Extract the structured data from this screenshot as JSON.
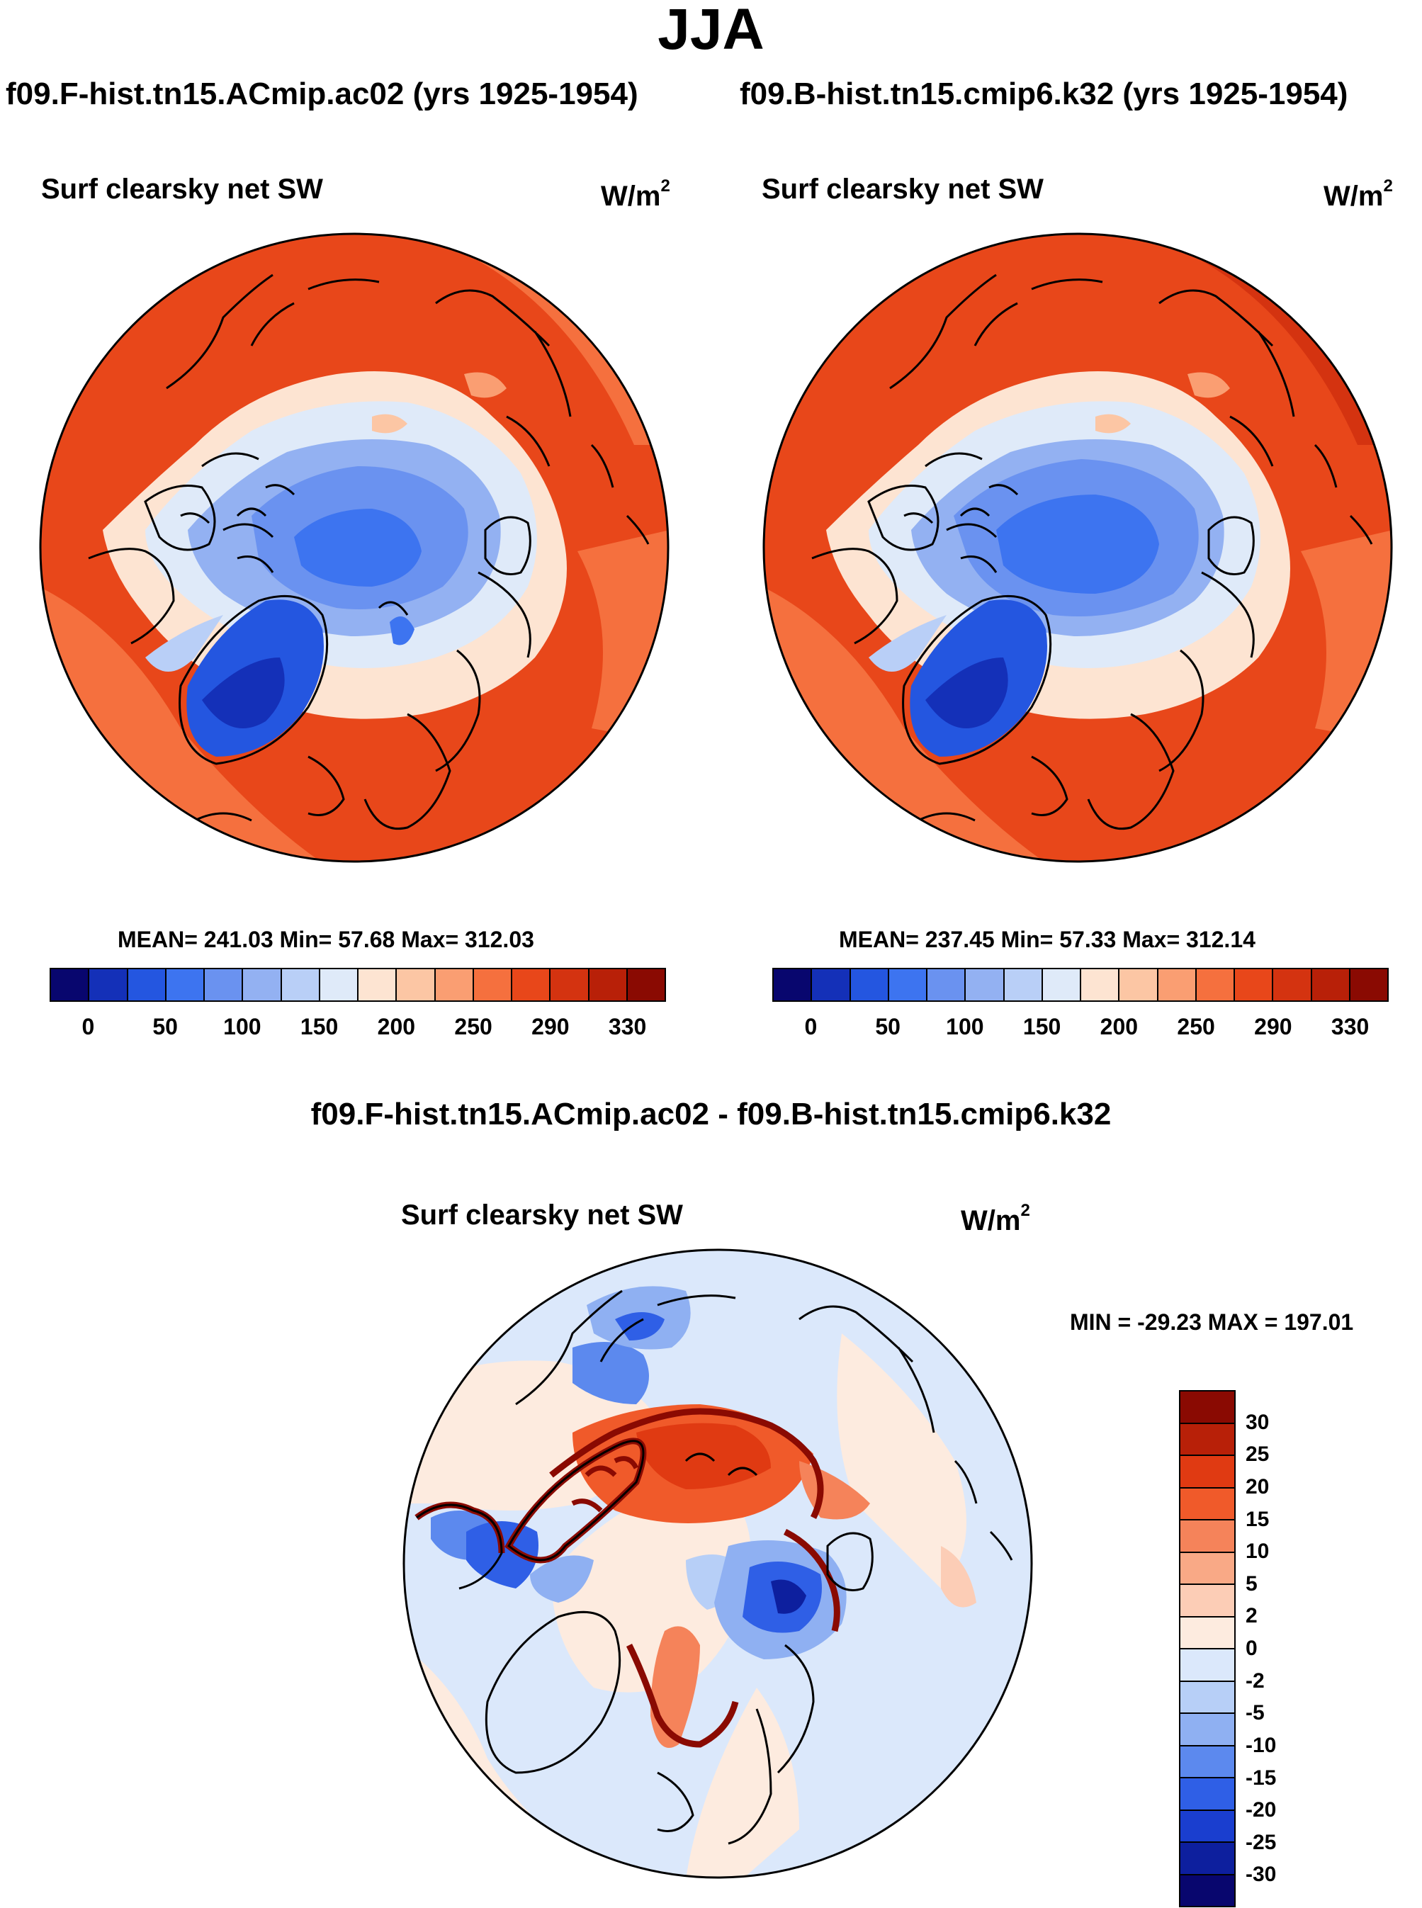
{
  "title": "JJA",
  "panels": [
    {
      "case_title": "f09.F-hist.tn15.ACmip.ac02 (yrs 1925-1954)",
      "variable": "Surf clearsky net SW",
      "units": "W/m",
      "units_sup": "2",
      "stats": "MEAN= 241.03  Min=  57.68  Max= 312.03"
    },
    {
      "case_title": "f09.B-hist.tn15.cmip6.k32 (yrs 1925-1954)",
      "variable": "Surf clearsky net SW",
      "units": "W/m",
      "units_sup": "2",
      "stats": "MEAN= 237.45  Min=  57.33  Max= 312.14"
    }
  ],
  "top_colorbar": {
    "colors": [
      "#08066e",
      "#1430b8",
      "#2456e0",
      "#3d74f0",
      "#6a92f0",
      "#93b1f2",
      "#b9cff7",
      "#dfeaf9",
      "#fde4d2",
      "#fcc6a4",
      "#fa9e72",
      "#f5703e",
      "#e8471a",
      "#d43310",
      "#b82008",
      "#8a0a02"
    ],
    "labels": [
      {
        "text": "0",
        "boundary": 1
      },
      {
        "text": "50",
        "boundary": 3
      },
      {
        "text": "100",
        "boundary": 5
      },
      {
        "text": "150",
        "boundary": 7
      },
      {
        "text": "200",
        "boundary": 9
      },
      {
        "text": "250",
        "boundary": 11
      },
      {
        "text": "290",
        "boundary": 13
      },
      {
        "text": "330",
        "boundary": 15
      }
    ]
  },
  "difference": {
    "title": "f09.F-hist.tn15.ACmip.ac02 - f09.B-hist.tn15.cmip6.k32",
    "variable": "Surf clearsky net SW",
    "units": "W/m",
    "units_sup": "2",
    "stats": "MIN = -29.23 MAX = 197.01",
    "colorbar": {
      "colors_top_to_bottom": [
        "#8a0a02",
        "#b82008",
        "#e03a12",
        "#f05a2a",
        "#f5835a",
        "#f9a986",
        "#fccdb6",
        "#fdebdf",
        "#dbe8fb",
        "#b7cff7",
        "#8fb0f2",
        "#5c89ee",
        "#2f5fe6",
        "#1a3ecf",
        "#0d1f9e",
        "#08066e"
      ],
      "labels": [
        "30",
        "25",
        "20",
        "15",
        "10",
        "5",
        "2",
        "0",
        "-2",
        "-5",
        "-10",
        "-15",
        "-20",
        "-25",
        "-30"
      ]
    }
  },
  "map_colors": {
    "ocean_warm": "#e8471a",
    "land_warm": "#f5703e",
    "ice_blue": "#3d74f0",
    "greenland": "#2456e0",
    "pale_blue": "#dfeaf9",
    "pale_peach": "#fde4d2",
    "diff_red": "#f05a2a",
    "diff_darkred": "#8a0a02"
  }
}
